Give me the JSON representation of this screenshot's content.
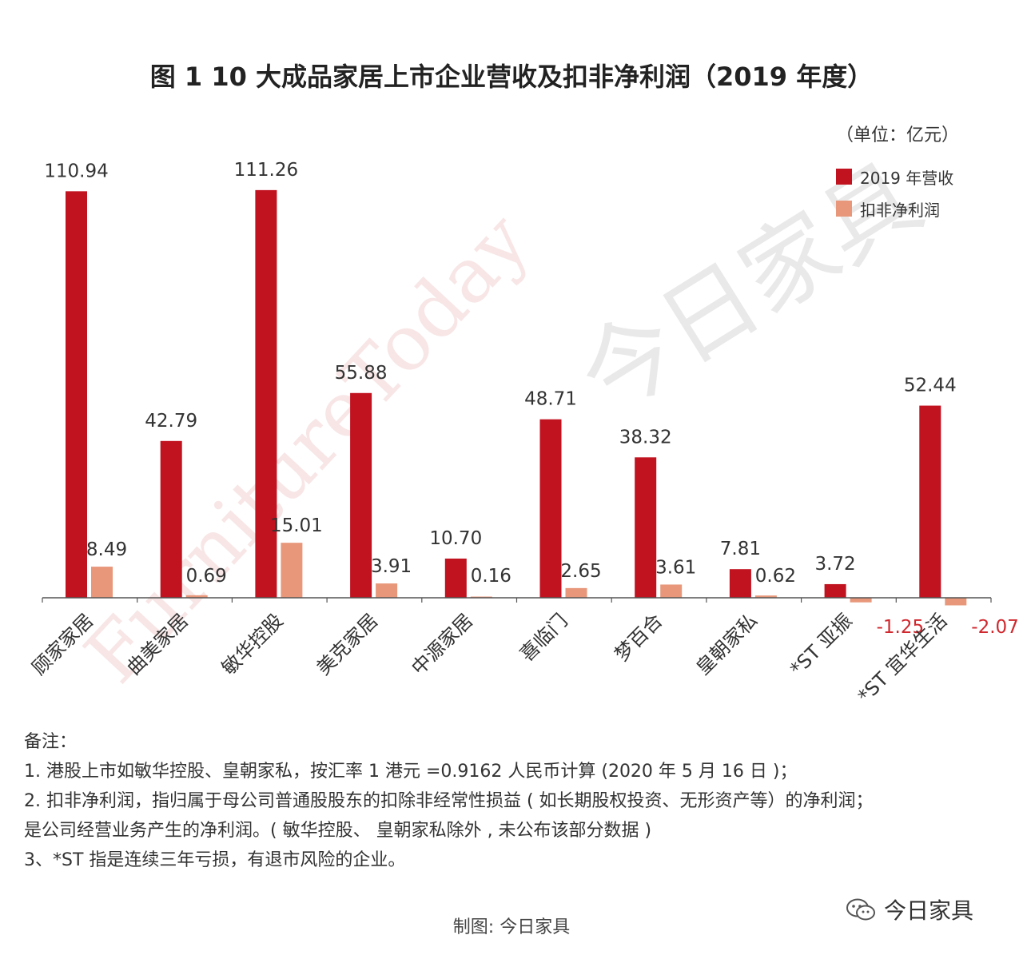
{
  "title": "图 1  10 大成品家居上市企业营收及扣非净利润（2019 年度）",
  "unit": "（单位：亿元）",
  "legend": [
    {
      "label": "2019 年营收",
      "color": "#c1121f"
    },
    {
      "label": "扣非净利润",
      "color": "#e8977a"
    }
  ],
  "watermark": {
    "en": "FurnitureToday",
    "cn": "今日家具"
  },
  "chart_data": {
    "type": "bar",
    "categories": [
      "顾家家居",
      "曲美家居",
      "敏华控股",
      "美克家居",
      "中源家居",
      "喜临门",
      "梦百合",
      "皇朝家私",
      "*ST 亚振",
      "*ST 宜华生活"
    ],
    "series": [
      {
        "name": "2019 年营收",
        "color": "#c1121f",
        "values": [
          110.94,
          42.79,
          111.26,
          55.88,
          10.7,
          48.71,
          38.32,
          7.81,
          3.72,
          52.44
        ],
        "labels": [
          "110.94",
          "42.79",
          "111.26",
          "55.88",
          "10.70",
          "48.71",
          "38.32",
          "7.81",
          "3.72",
          "52.44"
        ]
      },
      {
        "name": "扣非净利润",
        "color": "#e8977a",
        "values": [
          8.49,
          0.69,
          15.01,
          3.91,
          0.16,
          2.65,
          3.61,
          0.62,
          -1.25,
          -2.07
        ],
        "labels": [
          "8.49",
          "0.69",
          "15.01",
          "3.91",
          "0.16",
          "2.65",
          "3.61",
          "0.62",
          "-1.25",
          "-2.07"
        ]
      }
    ],
    "negative_label_color": "#d0282e",
    "ylim": [
      -3,
      112
    ]
  },
  "notes": [
    "备注：",
    "1. 港股上市如敏华控股、皇朝家私，按汇率 1 港元 =0.9162 人民币计算 (2020 年 5 月 16 日 )；",
    "2. 扣非净利润，指归属于母公司普通股股东的扣除非经常性损益 ( 如长期股权投资、无形资产等）的净利润；",
    "是公司经营业务产生的净利润。( 敏华控股、 皇朝家私除外 , 未公布该部分数据 )",
    "3、*ST 指是连续三年亏损，有退市风险的企业。"
  ],
  "credit": "制图: 今日家具",
  "brand": "今日家具",
  "brand_icon": "wechat-icon"
}
